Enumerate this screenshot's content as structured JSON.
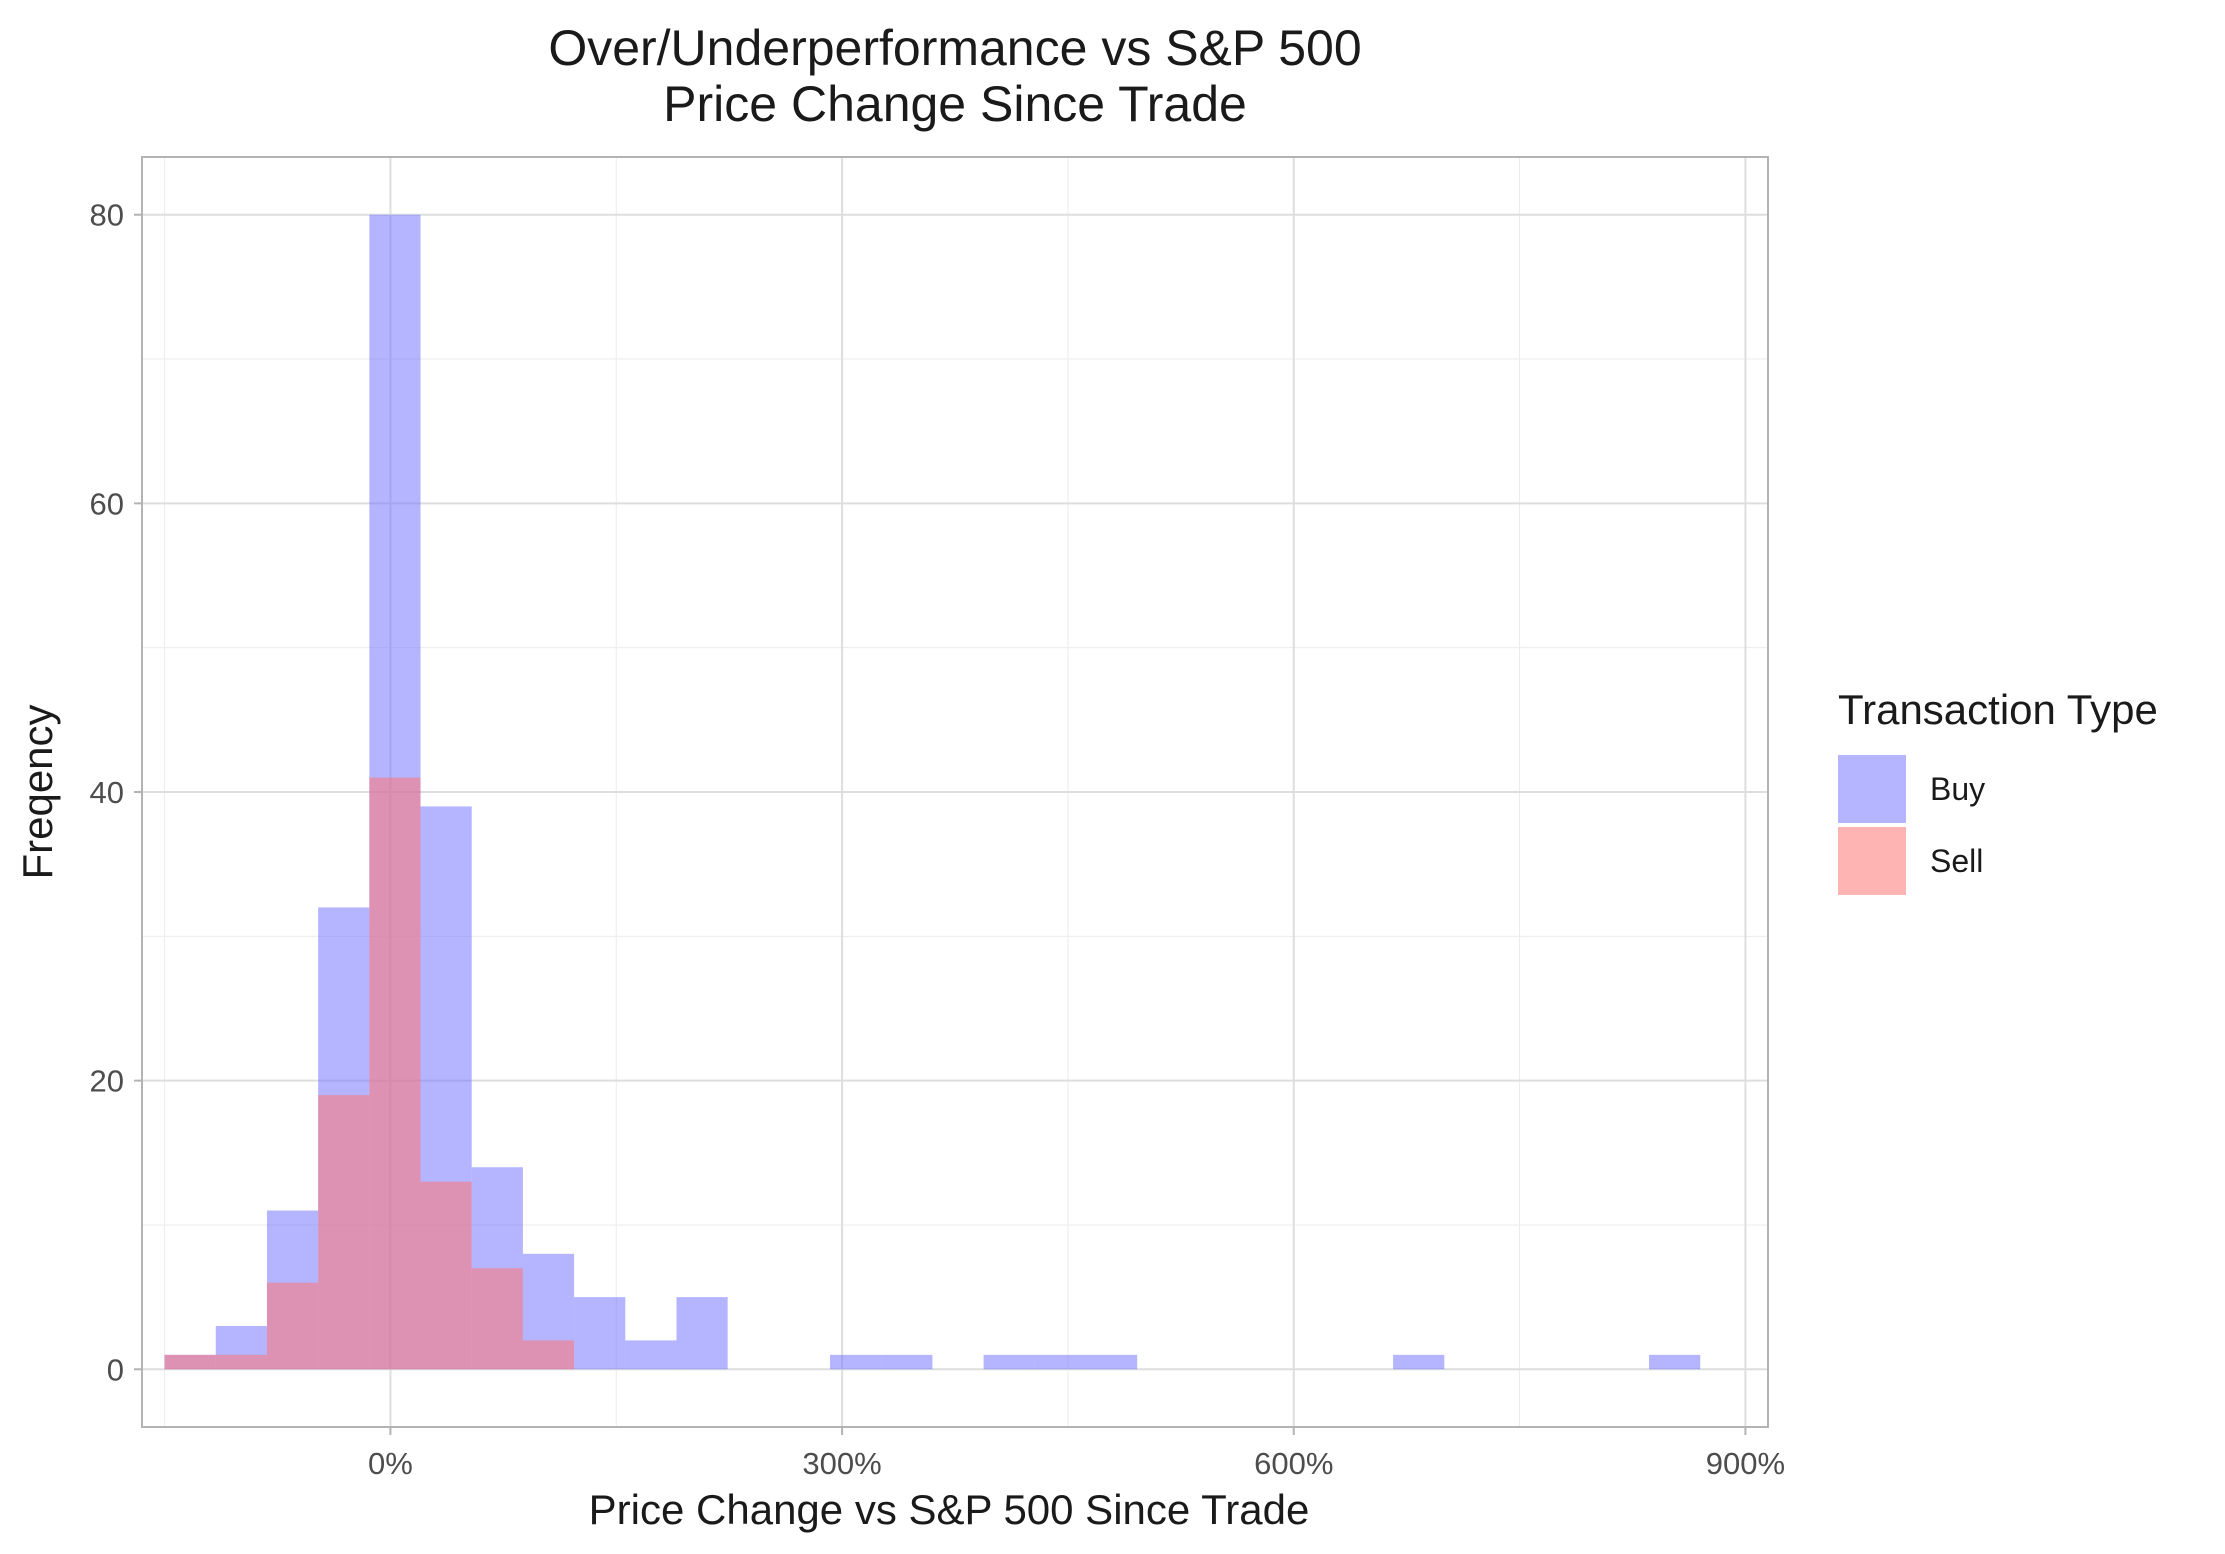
{
  "chart_data": {
    "type": "bar",
    "title": "Over/Underperformance vs S&P 500",
    "subtitle": "Price Change Since Trade",
    "xlabel": "Price Change vs S&P 500 Since Trade",
    "ylabel": "Freqency",
    "x_unit": "%",
    "xlim": [
      -165,
      915
    ],
    "ylim": [
      -4,
      84
    ],
    "x_ticks": [
      0,
      300,
      600,
      900
    ],
    "x_tick_labels": [
      "0%",
      "300%",
      "600%",
      "900%"
    ],
    "y_ticks": [
      0,
      20,
      40,
      60,
      80
    ],
    "y_tick_labels": [
      "0",
      "20",
      "40",
      "60",
      "80"
    ],
    "bin_width": 34,
    "grid": true,
    "legend": {
      "title": "Transaction Type",
      "position": "right"
    },
    "series": [
      {
        "name": "Buy",
        "color": "#7777ff",
        "bins": [
          {
            "start": -150,
            "end": -116,
            "count": 1
          },
          {
            "start": -116,
            "end": -82,
            "count": 3
          },
          {
            "start": -82,
            "end": -48,
            "count": 11
          },
          {
            "start": -48,
            "end": -14,
            "count": 32
          },
          {
            "start": -14,
            "end": 20,
            "count": 80
          },
          {
            "start": 20,
            "end": 54,
            "count": 39
          },
          {
            "start": 54,
            "end": 88,
            "count": 14
          },
          {
            "start": 88,
            "end": 122,
            "count": 8
          },
          {
            "start": 122,
            "end": 156,
            "count": 5
          },
          {
            "start": 156,
            "end": 190,
            "count": 2
          },
          {
            "start": 190,
            "end": 224,
            "count": 5
          },
          {
            "start": 292,
            "end": 326,
            "count": 1
          },
          {
            "start": 326,
            "end": 360,
            "count": 1
          },
          {
            "start": 394,
            "end": 428,
            "count": 1
          },
          {
            "start": 428,
            "end": 462,
            "count": 1
          },
          {
            "start": 462,
            "end": 496,
            "count": 1
          },
          {
            "start": 666,
            "end": 700,
            "count": 1
          },
          {
            "start": 836,
            "end": 870,
            "count": 1
          }
        ]
      },
      {
        "name": "Sell",
        "color": "#ff7777",
        "bins": [
          {
            "start": -150,
            "end": -116,
            "count": 1
          },
          {
            "start": -116,
            "end": -82,
            "count": 1
          },
          {
            "start": -82,
            "end": -48,
            "count": 6
          },
          {
            "start": -48,
            "end": -14,
            "count": 19
          },
          {
            "start": -14,
            "end": 20,
            "count": 41
          },
          {
            "start": 20,
            "end": 54,
            "count": 13
          },
          {
            "start": 54,
            "end": 88,
            "count": 7
          },
          {
            "start": 88,
            "end": 122,
            "count": 2
          }
        ]
      }
    ]
  }
}
